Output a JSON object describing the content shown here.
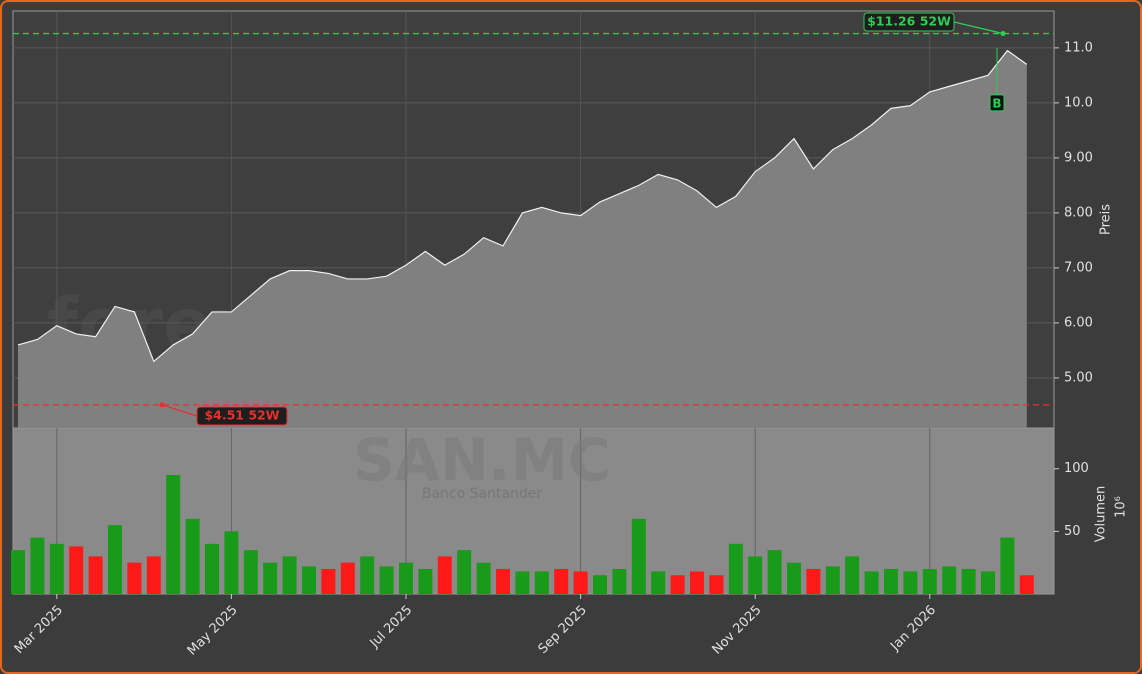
{
  "chart_data": [
    {
      "type": "area",
      "watermark": "forexsignale.trade",
      "symbol": "SAN.MC",
      "company": "Banco Santander",
      "ylabel": "Preis",
      "color": "#808080",
      "line_color": "#f0f0f0",
      "values": [
        5.6,
        5.7,
        5.95,
        5.8,
        5.75,
        6.3,
        6.2,
        5.3,
        5.6,
        5.8,
        6.2,
        6.2,
        6.5,
        6.8,
        6.95,
        6.95,
        6.9,
        6.8,
        6.8,
        6.85,
        7.05,
        7.3,
        7.05,
        7.25,
        7.55,
        7.4,
        8.0,
        8.1,
        8.0,
        7.95,
        8.2,
        8.35,
        8.5,
        8.7,
        8.6,
        8.4,
        8.1,
        8.3,
        8.75,
        9.0,
        9.35,
        8.8,
        9.15,
        9.35,
        9.6,
        9.9,
        9.95,
        10.2,
        10.3,
        10.4,
        10.5,
        10.95,
        10.7
      ],
      "ylim": [
        4.09,
        11.67
      ],
      "yticks": [
        {
          "value": 5,
          "label": "5.00"
        },
        {
          "value": 6,
          "label": "6.00"
        },
        {
          "value": 7,
          "label": "7.00"
        },
        {
          "value": 8,
          "label": "8.00"
        },
        {
          "value": 9,
          "label": "9.00"
        },
        {
          "value": 10,
          "label": "10.0"
        },
        {
          "value": 11,
          "label": "11.0"
        }
      ],
      "grid": true,
      "annotations": [
        {
          "value": 11.26,
          "label": "$11.26 52W",
          "color": "#2ecc55"
        },
        {
          "value": 4.51,
          "label": "$4.51 52W",
          "color": "#e83030"
        }
      ],
      "signals": [
        {
          "label": "B",
          "value": 10.0,
          "color": "#2ecc55"
        }
      ]
    },
    {
      "type": "bar",
      "ylabel": "Volumen",
      "yunit": "10⁶",
      "up_color": "#1a9a1a",
      "down_color": "#ff1a1a",
      "background": "#8a8a8a",
      "categories": [
        null,
        null,
        "Mar 2025",
        null,
        null,
        null,
        null,
        null,
        null,
        null,
        null,
        "May 2025",
        null,
        null,
        null,
        null,
        null,
        null,
        null,
        null,
        "Jul 2025",
        null,
        null,
        null,
        null,
        null,
        null,
        null,
        null,
        "Sep 2025",
        null,
        null,
        null,
        null,
        null,
        null,
        null,
        null,
        "Nov 2025",
        null,
        null,
        null,
        null,
        null,
        null,
        null,
        null,
        "Jan 2026",
        null,
        null,
        null,
        null,
        null
      ],
      "values": [
        35,
        45,
        40,
        38,
        30,
        55,
        25,
        30,
        95,
        60,
        40,
        50,
        35,
        25,
        30,
        22,
        20,
        25,
        30,
        22,
        25,
        20,
        30,
        35,
        25,
        20,
        18,
        18,
        20,
        18,
        15,
        20,
        60,
        18,
        15,
        18,
        15,
        40,
        30,
        35,
        25,
        20,
        22,
        30,
        18,
        20,
        18,
        20,
        22,
        20,
        18,
        45,
        15
      ],
      "ylim": [
        0,
        132.5
      ],
      "yticks": [
        50,
        100
      ]
    }
  ]
}
